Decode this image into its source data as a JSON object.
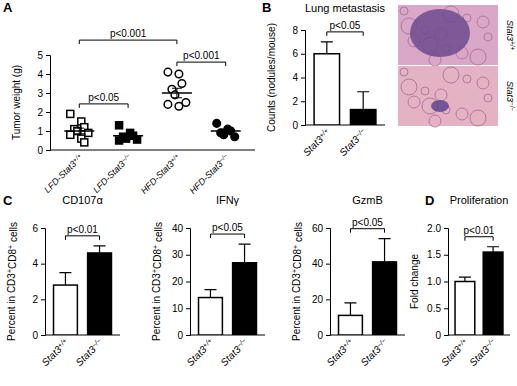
{
  "chart_data": [
    {
      "panel_label": "A",
      "type": "scatter",
      "ylabel": "Tumor weight (g)",
      "categories": [
        "LFD-Stat3+/+",
        "LFD-Stat3−/−",
        "HFD-Stat3+/+",
        "HFD-Stat3−/−"
      ],
      "groups": [
        {
          "marker": "open-square",
          "values": [
            1.9,
            1.5,
            1.2,
            1.1,
            1.0,
            0.9,
            0.8,
            0.6,
            0.4
          ],
          "mean": 1.0,
          "error": 0.15
        },
        {
          "marker": "square",
          "values": [
            1.3,
            0.9,
            0.75,
            0.7,
            0.6,
            0.55,
            0.5
          ],
          "mean": 0.75,
          "error": 0.1
        },
        {
          "marker": "open-circle",
          "values": [
            4.1,
            4.0,
            3.5,
            3.2,
            2.9,
            2.5,
            2.4,
            2.3
          ],
          "mean": 3.0,
          "error": 0.25
        },
        {
          "marker": "circle",
          "values": [
            1.4,
            1.1,
            1.0,
            0.9,
            0.8,
            0.7
          ],
          "mean": 1.0,
          "error": 0.1
        }
      ],
      "color": "#000000",
      "ylim": [
        0,
        5
      ],
      "yticks": [
        0,
        1,
        2,
        3,
        4,
        5
      ],
      "annotations": [
        {
          "text": "p<0.001",
          "from": 0,
          "to": 2
        },
        {
          "text": "p<0.05",
          "from": 0,
          "to": 1
        },
        {
          "text": "p<0.001",
          "from": 2,
          "to": 3
        }
      ]
    },
    {
      "panel_label": "B",
      "type": "bar",
      "title": "Lung metastasis",
      "ylabel": "Counts (nodules/mouse)",
      "categories": [
        "Stat3+/+",
        "Stat3−/−"
      ],
      "values": [
        6,
        1.3
      ],
      "errors": [
        1,
        1.5
      ],
      "colors": [
        "#ffffff",
        "#000000"
      ],
      "ylim": [
        0,
        8
      ],
      "yticks": [
        0,
        2,
        4,
        6,
        8
      ],
      "annotations": [
        {
          "text": "p<0.05",
          "from": 0,
          "to": 1
        }
      ],
      "image_labels": [
        "Stat3+/+",
        "Stat3−/−"
      ]
    },
    {
      "panel_label": "C",
      "type": "bar",
      "title": "CD107α",
      "ylabel": "Percent in CD3+CD8+ cells",
      "categories": [
        "Stat3+/+",
        "Stat3−/−"
      ],
      "values": [
        2.8,
        4.6
      ],
      "errors": [
        0.7,
        0.4
      ],
      "colors": [
        "#ffffff",
        "#000000"
      ],
      "ylim": [
        0,
        6
      ],
      "yticks": [
        0,
        2,
        4,
        6
      ],
      "annotations": [
        {
          "text": "p<0.01",
          "from": 0,
          "to": 1
        }
      ]
    },
    {
      "type": "bar",
      "title": "IFNγ",
      "ylabel": "Percent in CD3+CD8+ cells",
      "categories": [
        "Stat3+/+",
        "Stat3−/−"
      ],
      "values": [
        14,
        27
      ],
      "errors": [
        3,
        7
      ],
      "colors": [
        "#ffffff",
        "#000000"
      ],
      "ylim": [
        0,
        40
      ],
      "yticks": [
        0,
        10,
        20,
        30,
        40
      ],
      "annotations": [
        {
          "text": "p<0.05",
          "from": 0,
          "to": 1
        }
      ]
    },
    {
      "type": "bar",
      "title": "GzmB",
      "ylabel": "Percent in CD3+CD8+ cells",
      "categories": [
        "Stat3+/+",
        "Stat3−/−"
      ],
      "values": [
        11,
        41
      ],
      "errors": [
        7,
        13
      ],
      "colors": [
        "#ffffff",
        "#000000"
      ],
      "ylim": [
        0,
        60
      ],
      "yticks": [
        0,
        20,
        40,
        60
      ],
      "annotations": [
        {
          "text": "p<0.05",
          "from": 0,
          "to": 1
        }
      ]
    },
    {
      "panel_label": "D",
      "type": "bar",
      "title": "Proliferation",
      "ylabel": "Fold change",
      "categories": [
        "Stat3+/+",
        "Stat3−/−"
      ],
      "values": [
        1.0,
        1.55
      ],
      "errors": [
        0.08,
        0.1
      ],
      "colors": [
        "#ffffff",
        "#000000"
      ],
      "ylim": [
        0,
        2.0
      ],
      "yticks": [
        0,
        0.5,
        {
          "value": 1.0,
          "label": "1.0"
        },
        1.5,
        {
          "value": 2.0,
          "label": "2.0"
        }
      ],
      "annotations": [
        {
          "text": "p<0.01",
          "from": 0,
          "to": 1
        }
      ]
    }
  ]
}
